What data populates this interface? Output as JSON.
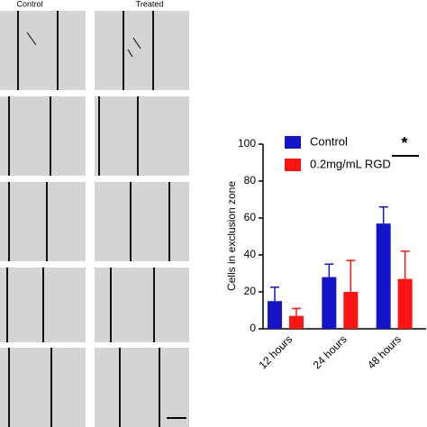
{
  "figure": {
    "column_labels": [
      "Control",
      "Treated"
    ]
  },
  "chart_data": {
    "type": "bar",
    "ylabel": "Cells in exclusion zone",
    "categories": [
      "12 hours",
      "24 hours",
      "48 hours"
    ],
    "series": [
      {
        "name": "Control",
        "color": "#1414c8",
        "values": [
          15,
          28,
          57
        ],
        "errors": [
          7.5,
          7,
          9
        ]
      },
      {
        "name": "0.2mg/mL RGD",
        "color": "#ff1414",
        "values": [
          7,
          20,
          27
        ],
        "errors": [
          4,
          17,
          15
        ]
      }
    ],
    "ylim": [
      0,
      100
    ],
    "yticks": [
      0,
      20,
      40,
      60,
      80,
      100
    ],
    "annotation": "*"
  }
}
